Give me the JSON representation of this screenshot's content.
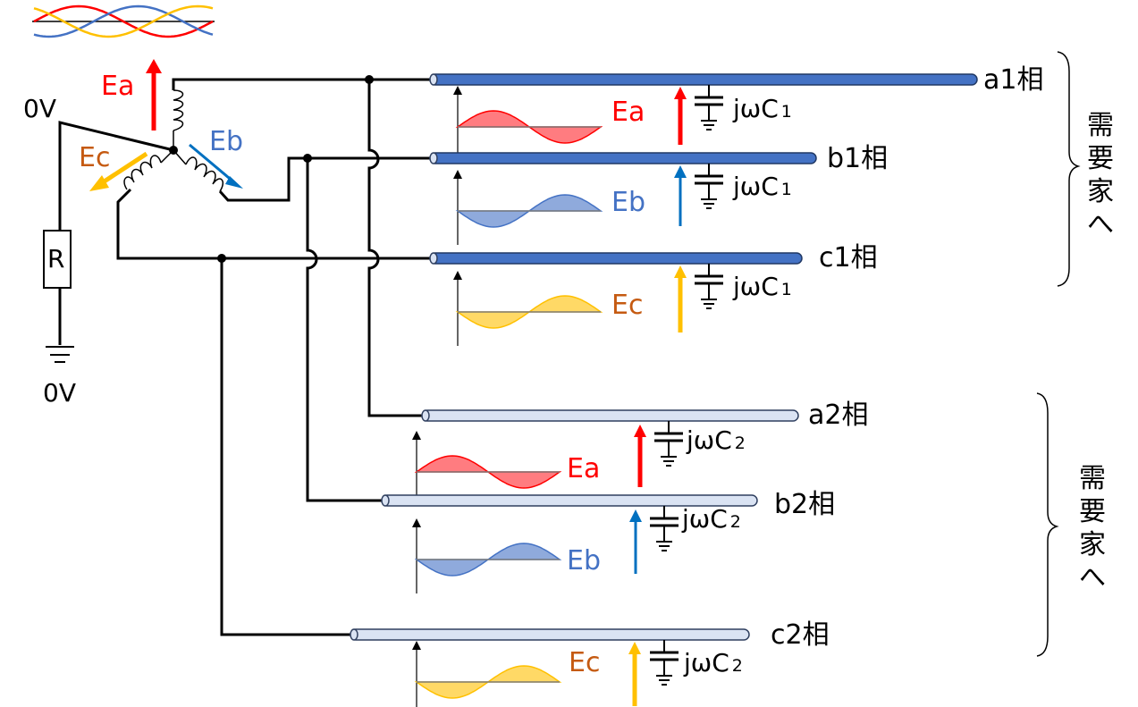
{
  "colors": {
    "phase_a": "#ff0000",
    "phase_b": "#0070c0",
    "phase_c": "#ffc000",
    "label_a": "#ff0000",
    "label_b": "#4472c4",
    "label_c": "#c55a11",
    "line1_bar": "#4472c4",
    "line2_bar": "#dae3f3",
    "wave_a_fill": "#ff7c80",
    "wave_b_fill": "#8faadc",
    "wave_c_fill": "#ffd966"
  },
  "generator": {
    "ea": "Ea",
    "eb": "Eb",
    "ec": "Ec",
    "neutral_voltage": "0V",
    "ground_voltage": "0V",
    "resistor": "R"
  },
  "lines": [
    {
      "id": "a1",
      "label": "a1相",
      "emf": "Ea",
      "cap": "jωC",
      "cap_sub": "1"
    },
    {
      "id": "b1",
      "label": "b1相",
      "emf": "Eb",
      "cap": "jωC",
      "cap_sub": "1"
    },
    {
      "id": "c1",
      "label": "c1相",
      "emf": "Ec",
      "cap": "jωC",
      "cap_sub": "1"
    },
    {
      "id": "a2",
      "label": "a2相",
      "emf": "Ea",
      "cap": "jωC",
      "cap_sub": "2"
    },
    {
      "id": "b2",
      "label": "b2相",
      "emf": "Eb",
      "cap": "jωC",
      "cap_sub": "2"
    },
    {
      "id": "c2",
      "label": "c2相",
      "emf": "Ec",
      "cap": "jωC",
      "cap_sub": "2"
    }
  ],
  "groups": [
    {
      "label": [
        "需",
        "要",
        "家",
        "へ"
      ]
    },
    {
      "label": [
        "需",
        "要",
        "家",
        "へ"
      ]
    }
  ]
}
